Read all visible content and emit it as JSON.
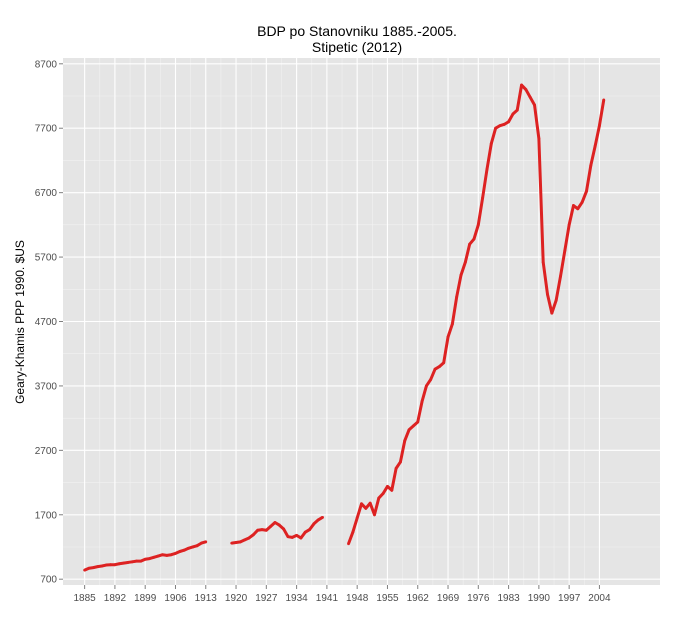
{
  "chart_data": {
    "type": "line",
    "title": "BDP po Stanovniku 1885.-2005.",
    "subtitle": "Stipetic (2012)",
    "xlabel": "",
    "ylabel": "Geary-Khamis PPP 1990. $US",
    "xlim": [
      1880,
      2018
    ],
    "ylim": [
      610,
      8790
    ],
    "x_ticks": [
      1885,
      1892,
      1899,
      1906,
      1913,
      1920,
      1927,
      1934,
      1941,
      1948,
      1955,
      1962,
      1969,
      1976,
      1983,
      1990,
      1997,
      2004
    ],
    "x_tick_labels": [
      "1885",
      "1892",
      "1899",
      "1906",
      "1913",
      "1920",
      "1927",
      "1934",
      "1941",
      "1948",
      "1955",
      "1962",
      "1969",
      "1976",
      "1983",
      "1990",
      "1997",
      "2004"
    ],
    "y_ticks": [
      700,
      1700,
      2700,
      3700,
      4700,
      5700,
      6700,
      7700,
      8700
    ],
    "y_tick_labels": [
      "700",
      "1700",
      "2700",
      "3700",
      "4700",
      "5700",
      "6700",
      "7700",
      "8700"
    ],
    "grid": true,
    "series": [
      {
        "name": "BDP po stanovniku",
        "color": "#dd2222",
        "segments": [
          [
            [
              1885,
              840
            ],
            [
              1886,
              870
            ],
            [
              1887,
              880
            ],
            [
              1888,
              895
            ],
            [
              1889,
              905
            ],
            [
              1890,
              920
            ],
            [
              1891,
              925
            ],
            [
              1892,
              925
            ],
            [
              1893,
              940
            ],
            [
              1894,
              950
            ],
            [
              1895,
              960
            ],
            [
              1896,
              970
            ],
            [
              1897,
              980
            ],
            [
              1898,
              980
            ],
            [
              1899,
              1010
            ],
            [
              1900,
              1020
            ],
            [
              1901,
              1040
            ],
            [
              1902,
              1060
            ],
            [
              1903,
              1080
            ],
            [
              1904,
              1070
            ],
            [
              1905,
              1080
            ],
            [
              1906,
              1100
            ],
            [
              1907,
              1130
            ],
            [
              1908,
              1150
            ],
            [
              1909,
              1180
            ],
            [
              1910,
              1200
            ],
            [
              1911,
              1220
            ],
            [
              1912,
              1260
            ],
            [
              1913,
              1280
            ]
          ],
          [
            [
              1919,
              1260
            ],
            [
              1920,
              1270
            ],
            [
              1921,
              1280
            ],
            [
              1922,
              1310
            ],
            [
              1923,
              1340
            ],
            [
              1924,
              1390
            ],
            [
              1925,
              1460
            ],
            [
              1926,
              1470
            ],
            [
              1927,
              1460
            ],
            [
              1928,
              1520
            ],
            [
              1929,
              1580
            ],
            [
              1930,
              1540
            ],
            [
              1931,
              1480
            ],
            [
              1932,
              1360
            ],
            [
              1933,
              1350
            ],
            [
              1934,
              1380
            ],
            [
              1935,
              1340
            ],
            [
              1936,
              1430
            ],
            [
              1937,
              1470
            ],
            [
              1938,
              1560
            ],
            [
              1939,
              1620
            ],
            [
              1940,
              1660
            ]
          ],
          [
            [
              1946,
              1250
            ],
            [
              1947,
              1430
            ],
            [
              1948,
              1650
            ],
            [
              1949,
              1870
            ],
            [
              1950,
              1800
            ],
            [
              1951,
              1880
            ],
            [
              1952,
              1700
            ],
            [
              1953,
              1960
            ],
            [
              1954,
              2030
            ],
            [
              1955,
              2140
            ],
            [
              1956,
              2080
            ],
            [
              1957,
              2420
            ],
            [
              1958,
              2520
            ],
            [
              1959,
              2850
            ],
            [
              1960,
              3020
            ],
            [
              1961,
              3080
            ],
            [
              1962,
              3140
            ],
            [
              1963,
              3460
            ],
            [
              1964,
              3700
            ],
            [
              1965,
              3800
            ],
            [
              1966,
              3960
            ],
            [
              1967,
              4000
            ],
            [
              1968,
              4060
            ],
            [
              1969,
              4460
            ],
            [
              1970,
              4660
            ],
            [
              1971,
              5080
            ],
            [
              1972,
              5420
            ],
            [
              1973,
              5620
            ],
            [
              1974,
              5900
            ],
            [
              1975,
              5980
            ],
            [
              1976,
              6200
            ],
            [
              1977,
              6620
            ],
            [
              1978,
              7060
            ],
            [
              1979,
              7460
            ],
            [
              1980,
              7700
            ],
            [
              1981,
              7740
            ],
            [
              1982,
              7760
            ],
            [
              1983,
              7800
            ],
            [
              1984,
              7920
            ],
            [
              1985,
              7980
            ],
            [
              1986,
              8370
            ],
            [
              1987,
              8300
            ],
            [
              1988,
              8180
            ],
            [
              1989,
              8060
            ],
            [
              1990,
              7540
            ],
            [
              1991,
              5620
            ],
            [
              1992,
              5120
            ],
            [
              1993,
              4830
            ],
            [
              1994,
              5030
            ],
            [
              1995,
              5400
            ],
            [
              1996,
              5800
            ],
            [
              1997,
              6200
            ],
            [
              1998,
              6500
            ],
            [
              1999,
              6450
            ],
            [
              2000,
              6550
            ],
            [
              2001,
              6720
            ],
            [
              2002,
              7120
            ],
            [
              2003,
              7420
            ],
            [
              2004,
              7740
            ],
            [
              2005,
              8140
            ]
          ]
        ]
      }
    ]
  }
}
